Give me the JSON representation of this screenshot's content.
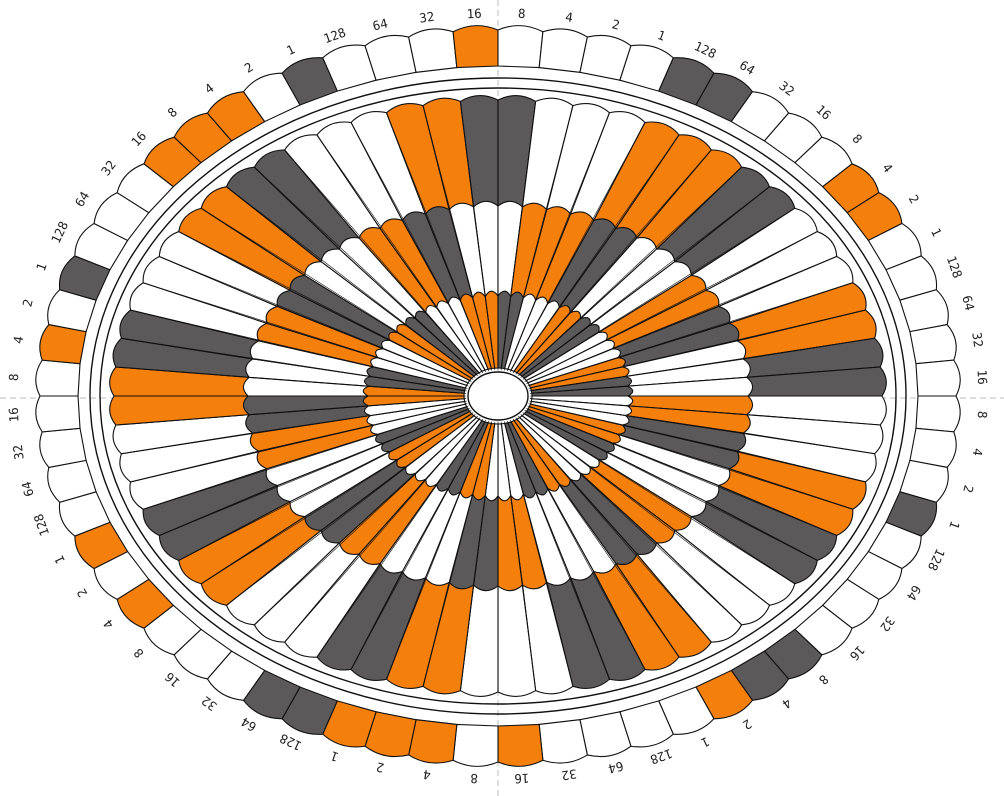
{
  "colors": {
    "orange": "#f57f0b",
    "gray": "#5b5959",
    "white": "#ffffff",
    "outline": "#111111",
    "axis": "#bbbbbb"
  },
  "bit_labels": [
    "128",
    "64",
    "32",
    "16",
    "8",
    "4",
    "2",
    "1"
  ],
  "outer_ring": {
    "sectors": [
      {
        "label": "top",
        "codes": [
          "w",
          "w",
          "w",
          "o",
          "w",
          "w",
          "w",
          "w"
        ]
      },
      {
        "label": "upper-right",
        "codes": [
          "g",
          "g",
          "w",
          "w",
          "w",
          "o",
          "o",
          "w"
        ]
      },
      {
        "label": "right",
        "codes": [
          "w",
          "w",
          "w",
          "w",
          "w",
          "w",
          "w",
          "g"
        ]
      },
      {
        "label": "lower-right",
        "codes": [
          "w",
          "w",
          "w",
          "w",
          "g",
          "g",
          "o",
          "w"
        ]
      },
      {
        "label": "bottom",
        "codes": [
          "w",
          "w",
          "w",
          "o",
          "w",
          "o",
          "o",
          "o"
        ]
      },
      {
        "label": "lower-left",
        "codes": [
          "g",
          "g",
          "w",
          "w",
          "w",
          "o",
          "w",
          "o"
        ]
      },
      {
        "label": "left",
        "codes": [
          "w",
          "w",
          "w",
          "w",
          "w",
          "o",
          "w",
          "g"
        ]
      },
      {
        "label": "upper-left",
        "codes": [
          "w",
          "w",
          "w",
          "o",
          "o",
          "o",
          "w",
          "g"
        ]
      }
    ]
  },
  "inner_ring_codes": [
    "w",
    "o",
    "o",
    "g",
    "g",
    "w",
    "w",
    "w",
    "o",
    "o",
    "o",
    "g",
    "g",
    "w",
    "w",
    "w",
    "o",
    "o",
    "g",
    "g",
    "w",
    "w",
    "w",
    "o",
    "o",
    "g",
    "g",
    "w",
    "w",
    "w",
    "o",
    "o",
    "g",
    "g",
    "w",
    "w",
    "w",
    "o",
    "o",
    "g",
    "g",
    "w",
    "w",
    "w",
    "o",
    "o",
    "g",
    "g",
    "w",
    "w",
    "w",
    "o",
    "o",
    "g",
    "g",
    "w",
    "w",
    "w",
    "o",
    "o",
    "g",
    "g",
    "w",
    "w"
  ]
}
